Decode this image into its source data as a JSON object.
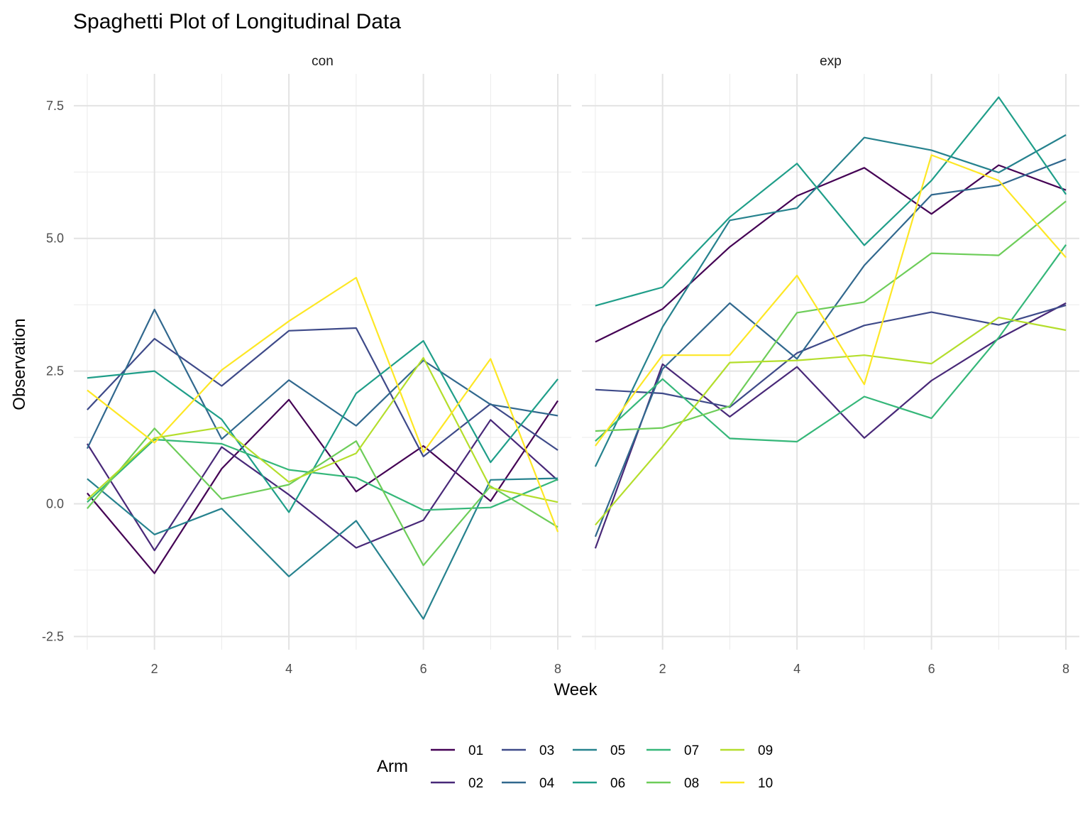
{
  "chart_data": {
    "type": "line",
    "title": "Spaghetti Plot of Longitudinal Data",
    "xlabel": "Week",
    "ylabel": "Observation",
    "xlim": [
      0.8,
      8.2
    ],
    "ylim": [
      -2.75,
      8.1
    ],
    "x_ticks": [
      2,
      4,
      6,
      8
    ],
    "y_ticks": [
      -2.5,
      0.0,
      2.5,
      5.0,
      7.5
    ],
    "y_tick_labels": [
      "-2.5",
      "0.0",
      "2.5",
      "5.0",
      "7.5"
    ],
    "x": [
      1,
      2,
      3,
      4,
      5,
      6,
      7,
      8
    ],
    "grid": true,
    "legend": {
      "title": "Arm",
      "position": "bottom",
      "entries": [
        "01",
        "02",
        "03",
        "04",
        "05",
        "06",
        "07",
        "08",
        "09",
        "10"
      ]
    },
    "colors": [
      "#440154",
      "#482878",
      "#3E4A89",
      "#31688E",
      "#26828E",
      "#1F9E89",
      "#35B779",
      "#6DCD59",
      "#B4DE2C",
      "#FDE725"
    ],
    "panels": [
      {
        "name": "con",
        "series": [
          {
            "name": "01",
            "values": [
              0.2,
              -1.31,
              0.66,
              1.96,
              0.23,
              1.09,
              0.05,
              1.94
            ]
          },
          {
            "name": "02",
            "values": [
              1.13,
              -0.88,
              1.07,
              0.17,
              -0.83,
              -0.31,
              1.58,
              0.44
            ]
          },
          {
            "name": "03",
            "values": [
              1.77,
              3.11,
              2.22,
              3.26,
              3.31,
              0.89,
              1.88,
              1.01
            ]
          },
          {
            "name": "04",
            "values": [
              1.04,
              3.66,
              1.22,
              2.33,
              1.47,
              2.7,
              1.87,
              1.66
            ]
          },
          {
            "name": "05",
            "values": [
              0.47,
              -0.58,
              -0.09,
              -1.37,
              -0.32,
              -2.17,
              0.45,
              0.48
            ]
          },
          {
            "name": "06",
            "values": [
              2.37,
              2.5,
              1.59,
              -0.16,
              2.08,
              3.07,
              0.78,
              2.35
            ]
          },
          {
            "name": "07",
            "values": [
              0.03,
              1.21,
              1.13,
              0.64,
              0.49,
              -0.12,
              -0.07,
              0.46
            ]
          },
          {
            "name": "08",
            "values": [
              -0.09,
              1.42,
              0.09,
              0.36,
              1.18,
              -1.16,
              0.33,
              -0.44
            ]
          },
          {
            "name": "09",
            "values": [
              0.08,
              1.24,
              1.44,
              0.41,
              0.95,
              2.75,
              0.3,
              0.03
            ]
          },
          {
            "name": "10",
            "values": [
              2.14,
              1.15,
              2.52,
              3.44,
              4.26,
              0.97,
              2.73,
              -0.53
            ]
          }
        ]
      },
      {
        "name": "exp",
        "series": [
          {
            "name": "01",
            "values": [
              3.05,
              3.67,
              4.84,
              5.8,
              6.33,
              5.46,
              6.38,
              5.91
            ]
          },
          {
            "name": "02",
            "values": [
              -0.84,
              2.63,
              1.64,
              2.58,
              1.24,
              2.32,
              3.11,
              3.78
            ]
          },
          {
            "name": "03",
            "values": [
              2.15,
              2.08,
              1.82,
              2.84,
              3.36,
              3.61,
              3.37,
              3.74
            ]
          },
          {
            "name": "04",
            "values": [
              -0.62,
              2.54,
              3.78,
              2.73,
              4.49,
              5.82,
              6.0,
              6.49
            ]
          },
          {
            "name": "05",
            "values": [
              0.7,
              3.33,
              5.34,
              5.57,
              6.9,
              6.66,
              6.24,
              6.95
            ]
          },
          {
            "name": "06",
            "values": [
              3.73,
              4.08,
              5.4,
              6.41,
              4.87,
              6.09,
              7.66,
              5.83
            ]
          },
          {
            "name": "07",
            "values": [
              1.18,
              2.35,
              1.23,
              1.17,
              2.02,
              1.61,
              3.13,
              4.88
            ]
          },
          {
            "name": "08",
            "values": [
              1.37,
              1.43,
              1.84,
              3.6,
              3.8,
              4.72,
              4.68,
              5.7
            ]
          },
          {
            "name": "09",
            "values": [
              -0.4,
              1.08,
              2.66,
              2.7,
              2.8,
              2.64,
              3.51,
              3.27
            ]
          },
          {
            "name": "10",
            "values": [
              1.09,
              2.8,
              2.8,
              4.3,
              2.25,
              6.57,
              6.09,
              4.64
            ]
          }
        ]
      }
    ]
  }
}
